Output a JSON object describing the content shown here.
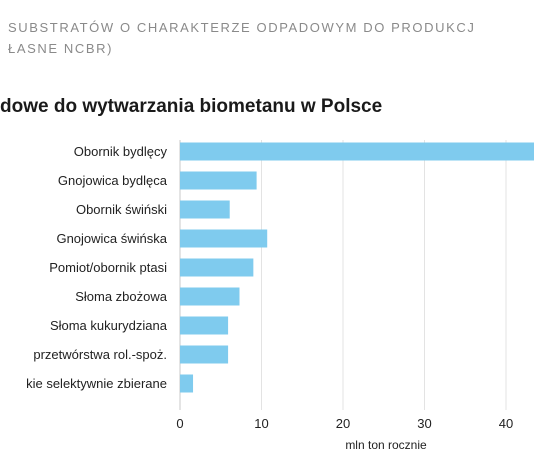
{
  "header": {
    "line1": "SUBSTRATÓW O CHARAKTERZE ODPADOWYM DO PRODUKCJ",
    "line2": "ŁASNE NCBR)"
  },
  "chart_data": {
    "type": "bar",
    "orientation": "horizontal",
    "title": "dowe do wytwarzania biometanu w Polsce",
    "xlabel": "mln ton rocznie",
    "ylabel": "",
    "xlim": [
      0,
      44
    ],
    "xticks": [
      0,
      10,
      20,
      30,
      40
    ],
    "grid": true,
    "bar_color": "#7fcbee",
    "categories": [
      "Obornik bydlęcy",
      "Gnojowica bydlęca",
      "Obornik świński",
      "Gnojowica świńska",
      "Pomiot/obornik ptasi",
      "Słoma zbożowa",
      "Słoma kukurydziana",
      "przetwórstwa rol.-spoż.",
      "kie selektywnie zbierane"
    ],
    "values": [
      45,
      9.4,
      6.1,
      10.7,
      9.0,
      7.3,
      5.9,
      5.9,
      1.6
    ]
  }
}
